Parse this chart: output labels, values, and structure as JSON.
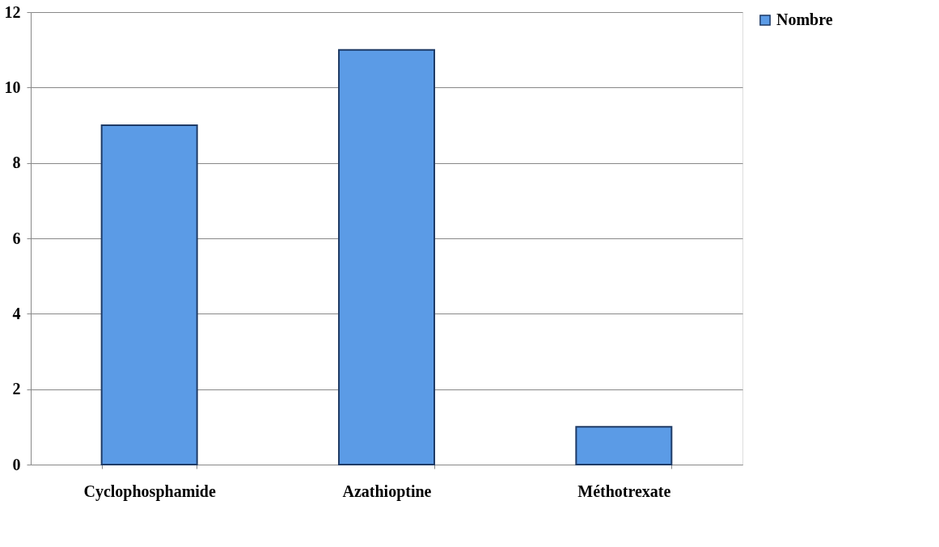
{
  "chart_data": {
    "type": "bar",
    "categories": [
      "Cyclophosphamide",
      "Azathioptine",
      "Méthotrexate"
    ],
    "series": [
      {
        "name": "Nombre",
        "color": "#5b9be6",
        "values": [
          9,
          11,
          1
        ]
      }
    ],
    "ylim": [
      0,
      12
    ],
    "yticks": [
      0,
      2,
      4,
      6,
      8,
      10,
      12
    ],
    "grid": "y",
    "legend": "right"
  }
}
